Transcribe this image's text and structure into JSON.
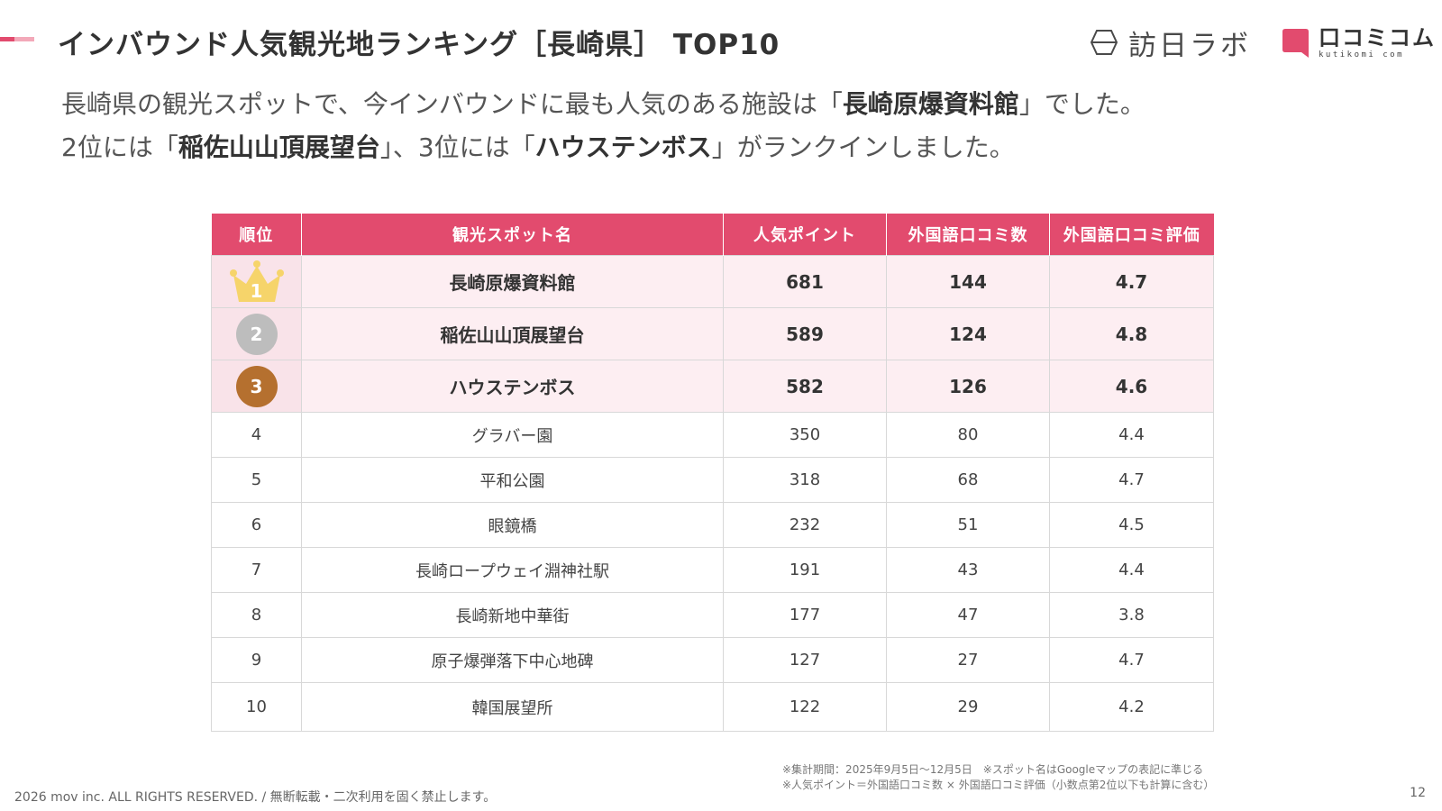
{
  "colors": {
    "accent": "#e24b6e",
    "accent_light": "#f3a9b9",
    "gold": "#f6d46a",
    "silver": "#bdbdbd",
    "bronze": "#b5702f"
  },
  "header": {
    "title": "インバウンド人気観光地ランキング［長崎県］ TOP10",
    "logos": {
      "houjin_labo": {
        "text": "訪日ラボ",
        "icon": "houjin-labo-logo-icon"
      },
      "kuchikomi_com": {
        "text": "口コミコム",
        "sub": "kutikomi com",
        "icon": "kuchikomi-logo-icon"
      }
    }
  },
  "lead": {
    "line1_pre": "長崎県の観光スポットで、今インバウンドに最も人気のある施設は「",
    "line1_bold": "長崎原爆資料館",
    "line1_post": "」でした。",
    "line2_a": "2位には「",
    "line2_bold1": "稲佐山山頂展望台",
    "line2_b": "」、3位には「",
    "line2_bold2": "ハウステンボス",
    "line2_c": "」がランクインしました。"
  },
  "table": {
    "headers": [
      "順位",
      "観光スポット名",
      "人気ポイント",
      "外国語口コミ数",
      "外国語口コミ評価"
    ],
    "rows": [
      {
        "rank": "1",
        "name": "長崎原爆資料館",
        "points": "681",
        "reviews": "144",
        "rating": "4.7"
      },
      {
        "rank": "2",
        "name": "稲佐山山頂展望台",
        "points": "589",
        "reviews": "124",
        "rating": "4.8"
      },
      {
        "rank": "3",
        "name": "ハウステンボス",
        "points": "582",
        "reviews": "126",
        "rating": "4.6"
      },
      {
        "rank": "4",
        "name": "グラバー園",
        "points": "350",
        "reviews": "80",
        "rating": "4.4"
      },
      {
        "rank": "5",
        "name": "平和公園",
        "points": "318",
        "reviews": "68",
        "rating": "4.7"
      },
      {
        "rank": "6",
        "name": "眼鏡橋",
        "points": "232",
        "reviews": "51",
        "rating": "4.5"
      },
      {
        "rank": "7",
        "name": "長崎ロープウェイ淵神社駅",
        "points": "191",
        "reviews": "43",
        "rating": "4.4"
      },
      {
        "rank": "8",
        "name": "長崎新地中華街",
        "points": "177",
        "reviews": "47",
        "rating": "3.8"
      },
      {
        "rank": "9",
        "name": "原子爆弾落下中心地碑",
        "points": "127",
        "reviews": "27",
        "rating": "4.7"
      },
      {
        "rank": "10",
        "name": "韓国展望所",
        "points": "122",
        "reviews": "29",
        "rating": "4.2"
      }
    ]
  },
  "notes": [
    "※集計期間：2025年9月5日〜12月5日　※スポット名はGoogleマップの表記に準じる",
    "※人気ポイント＝外国語口コミ数 × 外国語口コミ評価（小数点第2位以下も計算に含む）"
  ],
  "footer": {
    "copyright": "2026 mov inc. ALL RIGHTS RESERVED. / 無断転載・二次利用を固く禁止します。",
    "page_number": "12"
  }
}
